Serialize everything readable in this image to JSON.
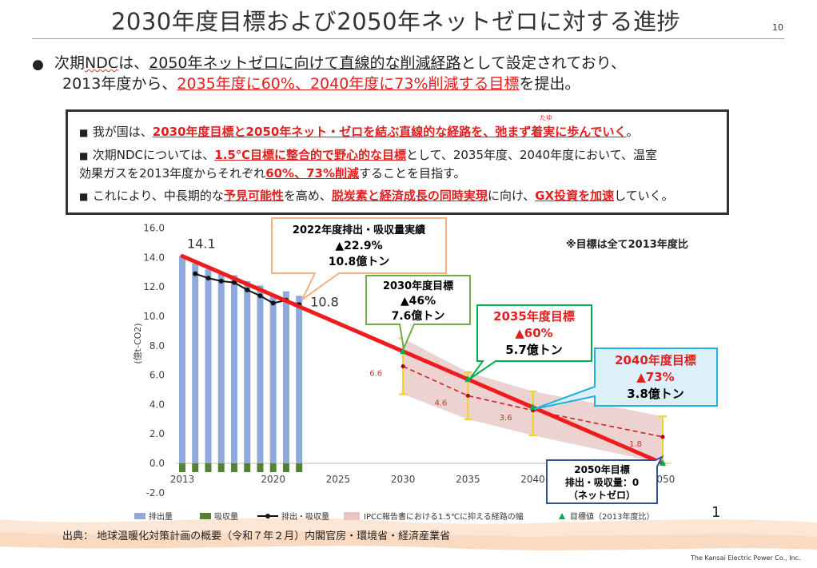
{
  "header": {
    "title": "2030年度目標および2050年ネットゼロに対する進捗",
    "page_number": "10"
  },
  "bullet": {
    "l1_a": "次期",
    "l1_ndc": "NDC",
    "l1_b": "は、",
    "l1_c": "2050年ネットゼロに向けて直線的な削減経路",
    "l1_d": "として設定されており、",
    "l2_a": "2013年度から、",
    "l2_b": "2035年度に60%、2040年度に73%削減する目標",
    "l2_c": "を提出。"
  },
  "infobox": {
    "r1_a": "我が国は、",
    "r1_b": "2030年度目標と2050年ネット・ゼロを結ぶ直線的な経路を、弛まず着実に歩んでいく",
    "r1_c": "。",
    "r1_ruby": "たゆ",
    "r2_a": "次期NDCについては、",
    "r2_b": "1.5℃目標に整合的で野心的な目標",
    "r2_c": "として、2035年度、2040年度において、温室",
    "r3_a": "効果ガスを2013年度からそれぞれ",
    "r3_b": "60%、73%削減",
    "r3_c": "することを目指す。",
    "r4_a": "これにより、中長期的な",
    "r4_b": "予見可能性",
    "r4_c": "を高め、",
    "r4_d": "脱炭素と経済成長の同時実現",
    "r4_e": "に向け、",
    "r4_f": "GX投資を加速",
    "r4_g": "していく。"
  },
  "chart_data": {
    "type": "bar",
    "ylabel": "(億t-CO2)",
    "ylim": [
      -2,
      16
    ],
    "yticks": [
      "16.0",
      "14.0",
      "12.0",
      "10.0",
      "8.0",
      "6.0",
      "4.0",
      "2.0",
      "0.0",
      "-2.0"
    ],
    "xlim": [
      2013,
      2050
    ],
    "xticks": [
      "2013",
      "2020",
      "2025",
      "2030",
      "2035",
      "2040",
      "2050"
    ],
    "emissions": {
      "name": "排出量",
      "x": [
        2013,
        2014,
        2015,
        2016,
        2017,
        2018,
        2019,
        2020,
        2021,
        2022
      ],
      "values": [
        14.1,
        13.6,
        13.2,
        12.9,
        12.8,
        12.4,
        12.1,
        11.5,
        11.7,
        11.4
      ],
      "color": "#8eaadb"
    },
    "removals": {
      "name": "吸収量",
      "x": [
        2013,
        2014,
        2015,
        2016,
        2017,
        2018,
        2019,
        2020,
        2021,
        2022
      ],
      "values": [
        -0.6,
        -0.6,
        -0.6,
        -0.6,
        -0.6,
        -0.6,
        -0.6,
        -0.6,
        -0.6,
        -0.6
      ],
      "color": "#548235"
    },
    "net": {
      "name": "排出・吸収量",
      "x": [
        2014,
        2015,
        2016,
        2017,
        2018,
        2019,
        2020,
        2021,
        2022
      ],
      "values": [
        12.9,
        12.6,
        12.4,
        12.3,
        11.8,
        11.4,
        10.9,
        11.1,
        10.8
      ],
      "color": "#111111"
    },
    "target_line": {
      "x": [
        2013,
        2050
      ],
      "values": [
        14.1,
        0
      ],
      "color": "#ee1c1c"
    },
    "ipcc_band": {
      "name": "IPCC報告書における1.5℃に抑える経路の幅",
      "x": [
        2030,
        2035,
        2040,
        2050
      ],
      "low": [
        4.7,
        3.0,
        1.9,
        0.0
      ],
      "high": [
        8.5,
        6.2,
        4.9,
        3.2
      ],
      "median": [
        6.6,
        4.6,
        3.6,
        1.8
      ],
      "median_labels": [
        "6.6",
        "4.6",
        "3.6",
        "1.8"
      ],
      "color": "#e7c3c3"
    },
    "targets": {
      "name": "目標値（2013年度比）",
      "x": [
        2030,
        2035,
        2040,
        2050
      ],
      "values": [
        7.6,
        5.7,
        3.8,
        0.0
      ]
    },
    "value_labels": {
      "start": "14.1",
      "latest": "10.8"
    },
    "note": "※目標は全て2013年度比"
  },
  "callouts": {
    "c2022": {
      "l1": "2022年度排出・吸収量実績",
      "l2": "▲22.9%",
      "l3": "10.8億トン"
    },
    "c2030": {
      "l1": "2030年度目標",
      "l2": "▲46%",
      "l3": "7.6億トン"
    },
    "c2035": {
      "l1": "2035年度目標",
      "l2": "▲60%",
      "l3": "5.7億トン"
    },
    "c2040": {
      "l1": "2040年度目標",
      "l2": "▲73%",
      "l3": "3.8億トン"
    },
    "c2050": {
      "l1": "2050年目標",
      "l2": "排出・吸収量：0",
      "l3": "（ネットゼロ）"
    }
  },
  "footer": {
    "source": "出典：  地球温暖化対策計画の概要（令和７年２月）内閣官房・環境省・経済産業省",
    "company": "The Kansai Electric Power Co., Inc.",
    "figure_no": "1"
  }
}
